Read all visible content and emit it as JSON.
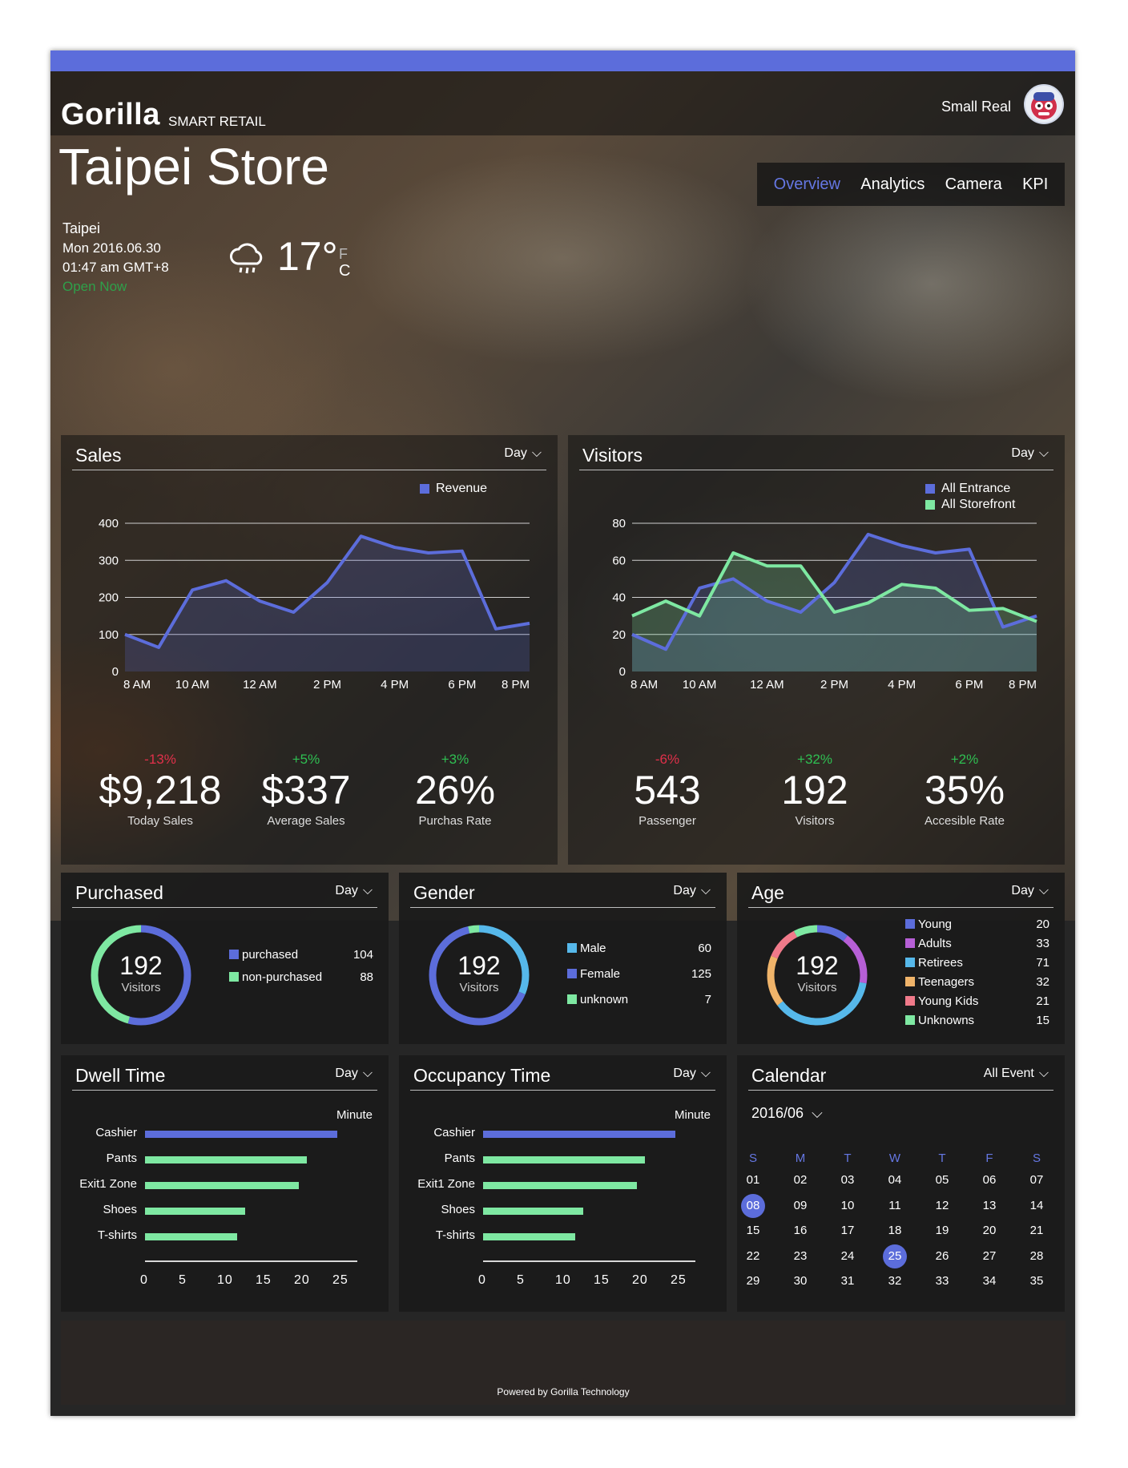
{
  "app": {
    "logo": "Gorilla",
    "logo_sub": "SMART RETAIL",
    "user_name": "Small Real"
  },
  "store": {
    "title": "Taipei Store",
    "city": "Taipei",
    "date": "Mon 2016.06.30",
    "time": "01:47 am GMT+8",
    "status": "Open Now",
    "temperature": "17°",
    "unit_f": "F",
    "unit_c": "C",
    "weather_icon": "cloud-rain-icon"
  },
  "tabs": [
    {
      "label": "Overview",
      "active": true
    },
    {
      "label": "Analytics"
    },
    {
      "label": "Camera"
    },
    {
      "label": "KPI"
    }
  ],
  "colors": {
    "accent": "#5c6ddb",
    "green": "#7ee8a2",
    "positive": "#2fbf52",
    "negative": "#e0304a"
  },
  "sales": {
    "title": "Sales",
    "range": "Day",
    "kpis": [
      {
        "change": "-13%",
        "value": "$9,218",
        "label": "Today Sales"
      },
      {
        "change": "+5%",
        "value": "$337",
        "label": "Average Sales"
      },
      {
        "change": "+3%",
        "value": "26%",
        "label": "Purchas Rate"
      }
    ]
  },
  "visitors": {
    "title": "Visitors",
    "range": "Day",
    "kpis": [
      {
        "change": "-6%",
        "value": "543",
        "label": "Passenger"
      },
      {
        "change": "+32%",
        "value": "192",
        "label": "Visitors"
      },
      {
        "change": "+2%",
        "value": "35%",
        "label": "Accesible Rate"
      }
    ]
  },
  "chart_data": [
    {
      "type": "area",
      "x_tick_labels": [
        "8 AM",
        "10 AM",
        "12 AM",
        "2 PM",
        "4 PM",
        "6 PM",
        "8 PM"
      ],
      "x": [
        8,
        9,
        10,
        11,
        12,
        13,
        14,
        15,
        16,
        17,
        18,
        19,
        20
      ],
      "ylim": [
        0,
        400
      ],
      "y_ticks": [
        "0",
        "100",
        "200",
        "300",
        "400"
      ],
      "series": [
        {
          "name": "Revenue",
          "color": "#5c6ddb",
          "values": [
            100,
            65,
            220,
            245,
            190,
            160,
            240,
            365,
            335,
            320,
            325,
            115,
            130
          ]
        }
      ],
      "legend": "top-right"
    },
    {
      "type": "area",
      "x_tick_labels": [
        "8 AM",
        "10 AM",
        "12 AM",
        "2 PM",
        "4 PM",
        "6 PM",
        "8 PM"
      ],
      "x": [
        8,
        9,
        10,
        11,
        12,
        13,
        14,
        15,
        16,
        17,
        18,
        19,
        20
      ],
      "ylim": [
        0,
        80
      ],
      "y_ticks": [
        "0",
        "20",
        "40",
        "60",
        "80"
      ],
      "series": [
        {
          "name": "All Entrance",
          "color": "#5c6ddb",
          "values": [
            20,
            12,
            45,
            50,
            38,
            32,
            48,
            74,
            68,
            64,
            66,
            24,
            30
          ]
        },
        {
          "name": "All Storefront",
          "color": "#7ee8a2",
          "values": [
            30,
            38,
            30,
            64,
            57,
            57,
            32,
            37,
            47,
            45,
            33,
            34,
            27
          ]
        }
      ],
      "legend": "top-right"
    },
    {
      "type": "bar",
      "title": "Dwell Time",
      "xlabel": "Minute",
      "categories": [
        "Cashier",
        "Pants",
        "Exit1 Zone",
        "Shoes",
        "T-shirts"
      ],
      "values": [
        25,
        21,
        20,
        13,
        12
      ],
      "xlim": [
        0,
        25
      ],
      "x_ticks": [
        "0",
        "5",
        "10",
        "15",
        "20",
        "25"
      ]
    },
    {
      "type": "bar",
      "title": "Occupancy Time",
      "xlabel": "Minute",
      "categories": [
        "Cashier",
        "Pants",
        "Exit1 Zone",
        "Shoes",
        "T-shirts"
      ],
      "values": [
        25,
        21,
        20,
        13,
        12
      ],
      "xlim": [
        0,
        25
      ],
      "x_ticks": [
        "0",
        "5",
        "10",
        "15",
        "20",
        "25"
      ]
    }
  ],
  "purchased": {
    "title": "Purchased",
    "range": "Day",
    "total": "192",
    "total_label": "Visitors",
    "items": [
      {
        "name": "purchased",
        "value": "104",
        "color": "#5c6ddb"
      },
      {
        "name": "non-purchased",
        "value": "88",
        "color": "#7ee8a2"
      }
    ]
  },
  "gender": {
    "title": "Gender",
    "range": "Day",
    "total": "192",
    "total_label": "Visitors",
    "items": [
      {
        "name": "Male",
        "value": "60",
        "color": "#56b8ea"
      },
      {
        "name": "Female",
        "value": "125",
        "color": "#5c6ddb"
      },
      {
        "name": "unknown",
        "value": "7",
        "color": "#7ee8a2"
      }
    ]
  },
  "age": {
    "title": "Age",
    "range": "Day",
    "total": "192",
    "total_label": "Visitors",
    "items": [
      {
        "name": "Young",
        "value": "20",
        "color": "#5c6ddb"
      },
      {
        "name": "Adults",
        "value": "33",
        "color": "#b65fd6"
      },
      {
        "name": "Retirees",
        "value": "71",
        "color": "#56b8ea"
      },
      {
        "name": "Teenagers",
        "value": "32",
        "color": "#f0b46a"
      },
      {
        "name": "Young Kids",
        "value": "21",
        "color": "#f07a8a"
      },
      {
        "name": "Unknowns",
        "value": "15",
        "color": "#7ee8a2"
      }
    ]
  },
  "dwell": {
    "title": "Dwell Time",
    "range": "Day",
    "unit": "Minute"
  },
  "occupancy": {
    "title": "Occupancy Time",
    "range": "Day",
    "unit": "Minute"
  },
  "calendar": {
    "title": "Calendar",
    "filter": "All Event",
    "month": "2016/06",
    "weekdays": [
      "S",
      "M",
      "T",
      "W",
      "T",
      "F",
      "S"
    ],
    "weeks": [
      [
        "01",
        "02",
        "03",
        "04",
        "05",
        "06",
        "07"
      ],
      [
        "08",
        "09",
        "10",
        "11",
        "12",
        "13",
        "14"
      ],
      [
        "15",
        "16",
        "17",
        "18",
        "19",
        "20",
        "21"
      ],
      [
        "22",
        "23",
        "24",
        "25",
        "26",
        "27",
        "28"
      ],
      [
        "29",
        "30",
        "31",
        "32",
        "33",
        "34",
        "35"
      ]
    ],
    "selected": [
      "08",
      "25"
    ]
  },
  "footer": {
    "text": "Powered by Gorilla Technology"
  }
}
